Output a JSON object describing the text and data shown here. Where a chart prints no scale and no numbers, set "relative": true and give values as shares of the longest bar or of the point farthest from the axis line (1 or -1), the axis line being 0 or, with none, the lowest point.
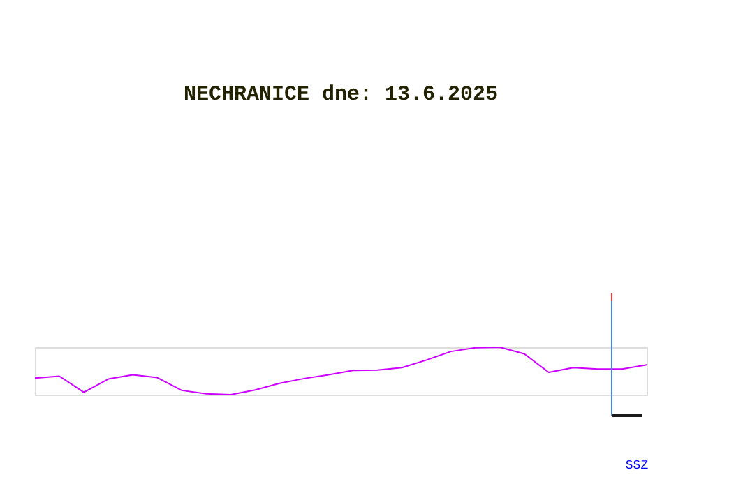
{
  "chart_data": {
    "type": "line",
    "title": "NECHRANICE dne: 13.6.2025",
    "relative": true,
    "color": "#cc00ff",
    "categories": [
      null,
      null,
      null,
      null,
      null,
      null,
      null,
      null,
      null,
      null,
      null,
      null,
      null,
      null,
      null,
      null,
      null,
      null,
      null,
      null,
      null,
      null,
      null,
      null,
      null,
      null
    ],
    "values": [
      0.35,
      0.39,
      0.05,
      0.33,
      0.42,
      0.36,
      0.09,
      0.02,
      0,
      0.1,
      0.24,
      0.34,
      0.42,
      0.51,
      0.52,
      0.57,
      0.73,
      0.91,
      0.99,
      1,
      0.86,
      0.47,
      0.57,
      0.54,
      0.54,
      0.63
    ],
    "annotations": [
      "SSZ"
    ],
    "grid": false,
    "marker": "none",
    "line_style": "solid"
  }
}
